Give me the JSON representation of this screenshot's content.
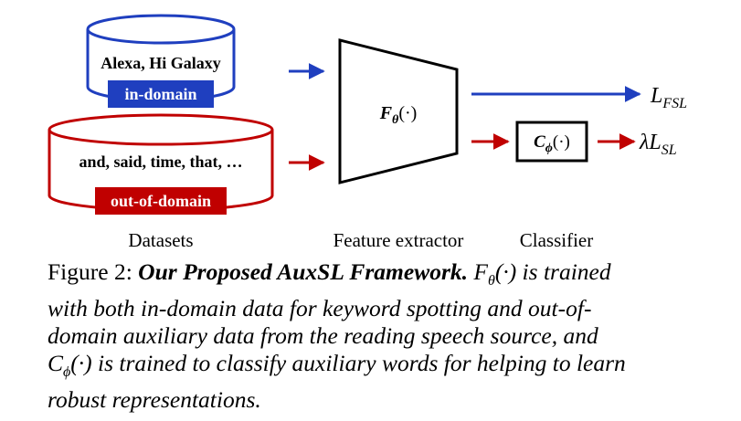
{
  "diagram": {
    "in_domain_text": "Alexa, Hi Galaxy",
    "in_domain_label": "in-domain",
    "out_domain_text": "and, said, time, that, …",
    "out_domain_label": "out-of-domain",
    "extractor_label": "F",
    "extractor_sub": "θ",
    "extractor_arg": "(·)",
    "classifier_label": "C",
    "classifier_sub": "ϕ",
    "classifier_arg": "(·)",
    "loss_fsl": "L",
    "loss_fsl_sub": "FSL",
    "loss_sl_prefix": "λL",
    "loss_sl_sub": "SL",
    "label_datasets": "Datasets",
    "label_extractor": "Feature extractor",
    "label_classifier": "Classifier",
    "colors": {
      "blue": "#1f3fbf",
      "red": "#c00000"
    }
  },
  "caption": {
    "prefix": "Figure 2: ",
    "title": "Our Proposed AuxSL Framework.",
    "rest_line1": " F",
    "line1_sub": "θ",
    "line1_tail": "(·) is trained",
    "line2": "with both in-domain data for keyword spotting and out-of-",
    "line3": "domain auxiliary data from the reading speech source, and",
    "line4_prefix": "C",
    "line4_sub": "ϕ",
    "line4_tail": "(·) is trained to classify auxiliary words for helping to learn",
    "line5": "robust representations."
  }
}
